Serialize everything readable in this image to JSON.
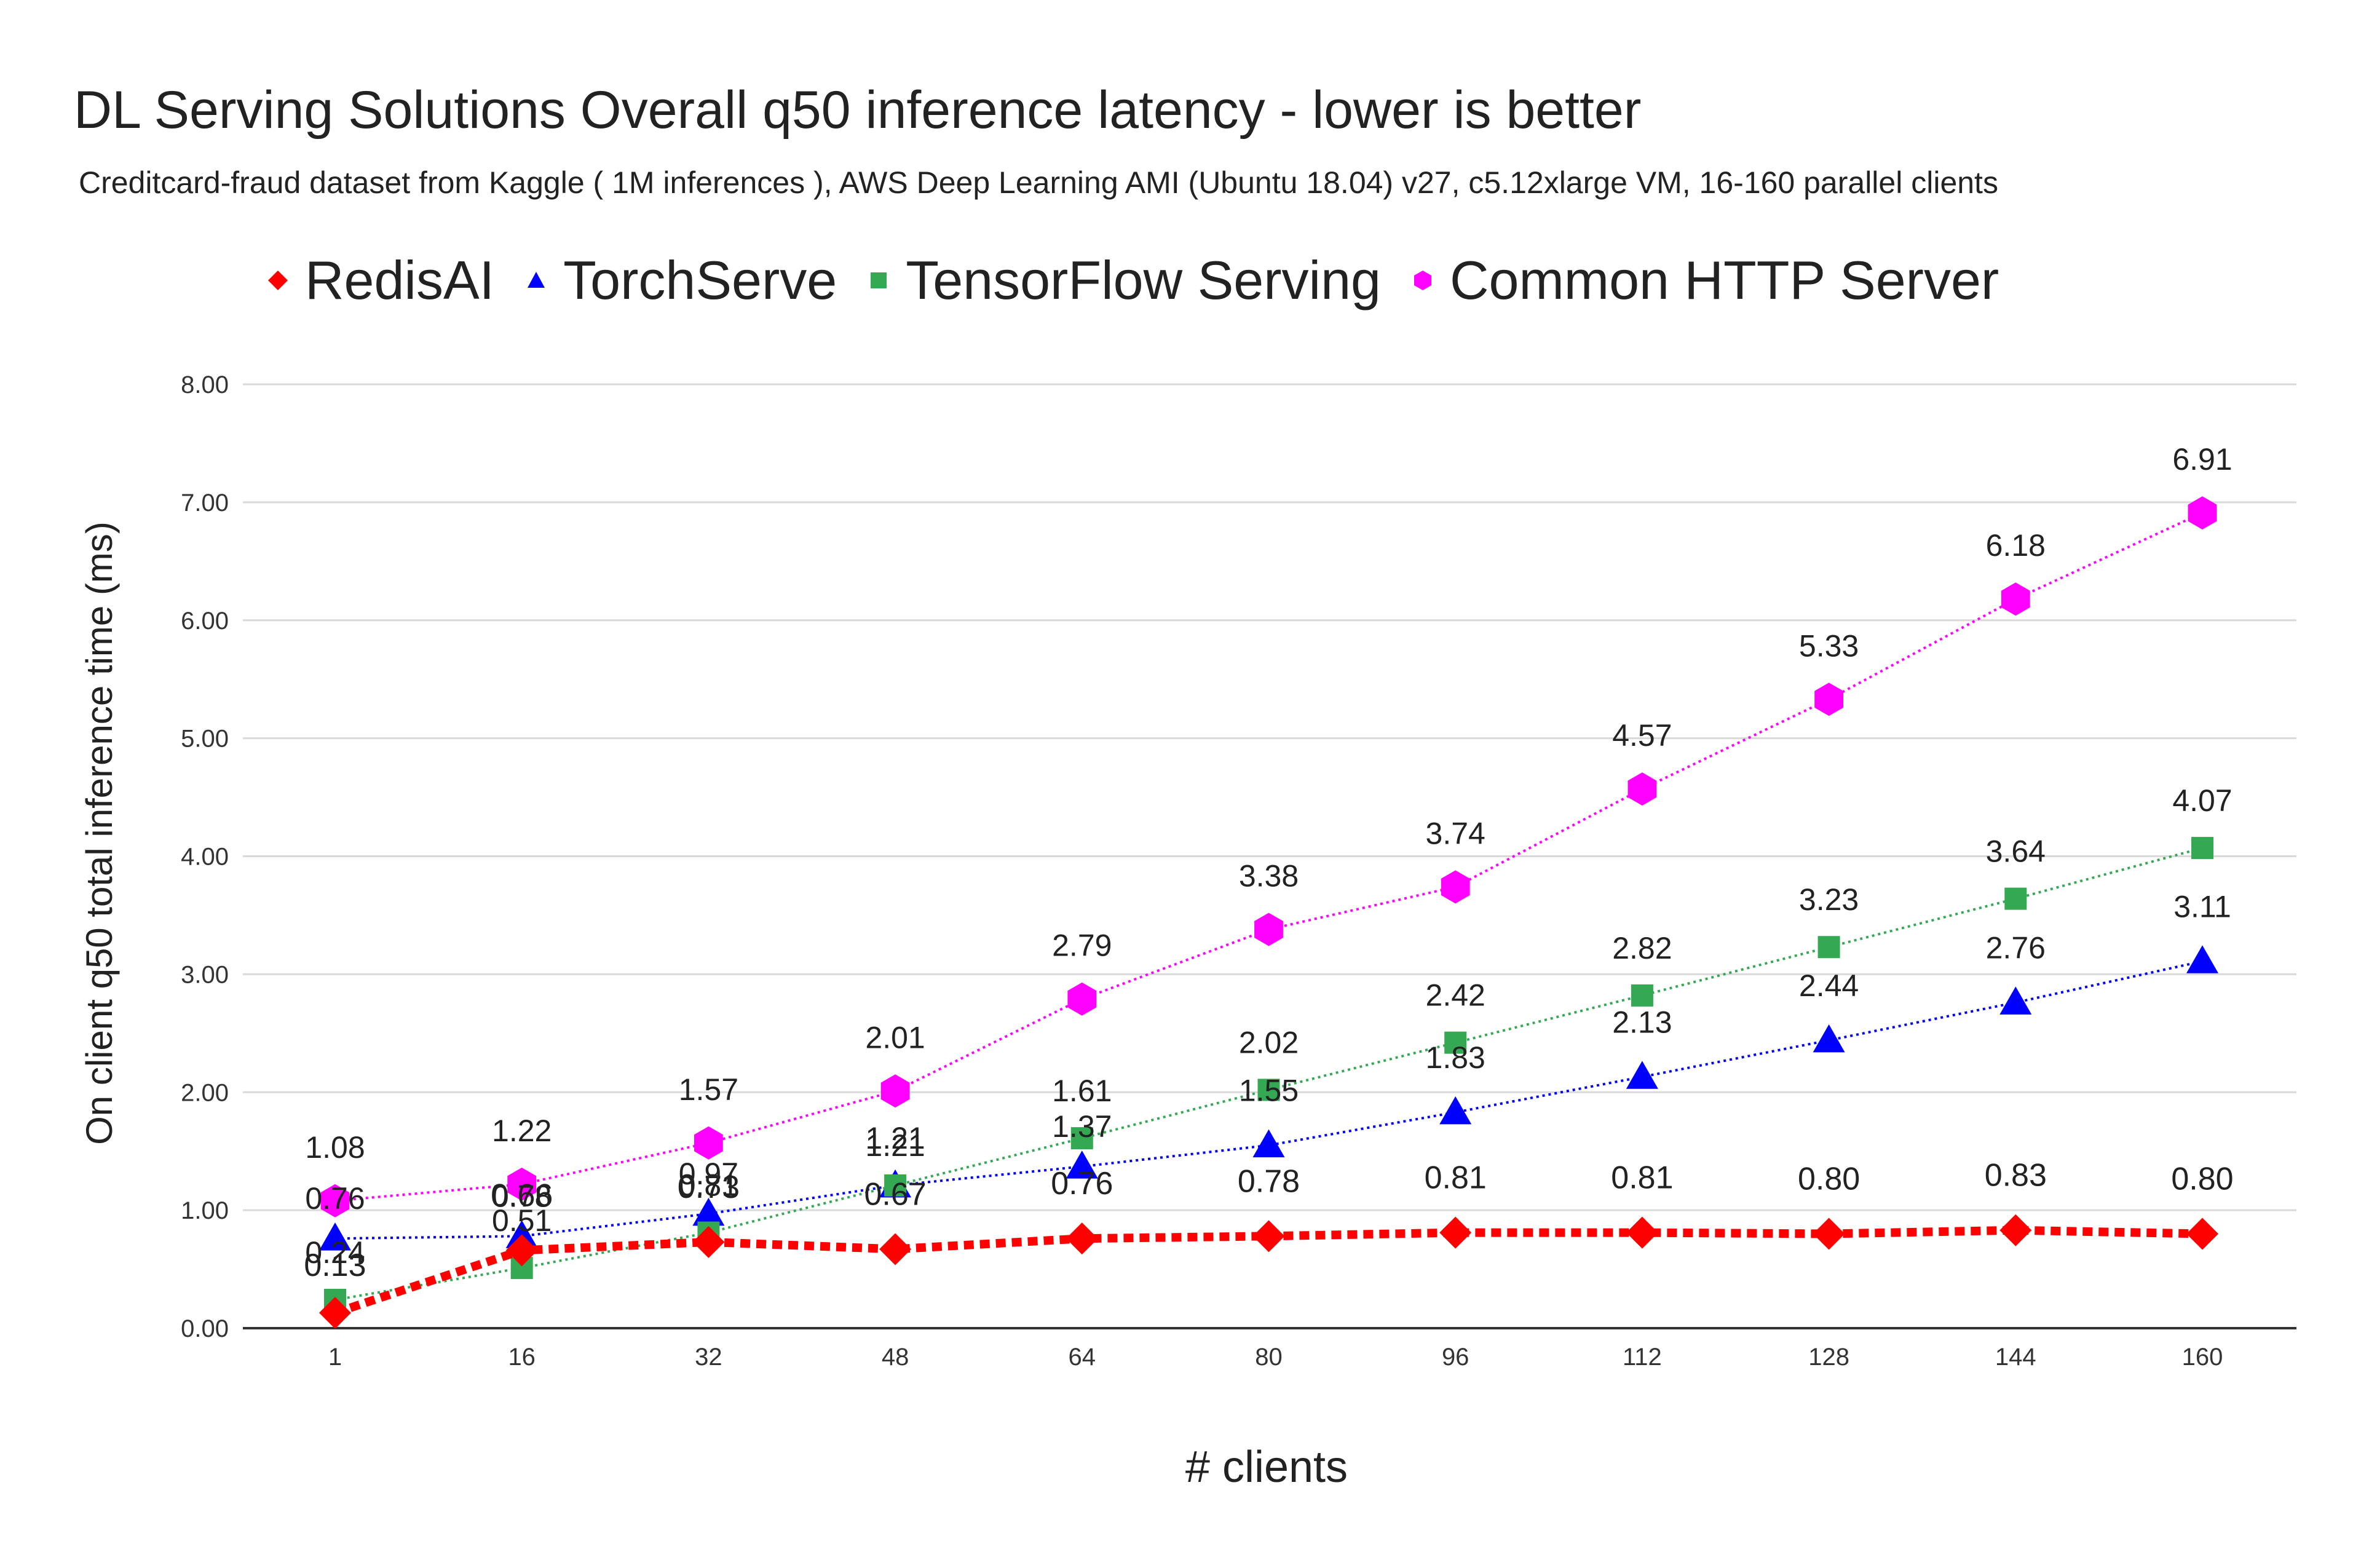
{
  "chart_data": {
    "type": "line",
    "title": "DL Serving Solutions Overall q50 inference latency  - lower is better",
    "subtitle": "Creditcard-fraud dataset from Kaggle ( 1M inferences ), AWS Deep Learning AMI (Ubuntu 18.04) v27, c5.12xlarge VM, 16-160 parallel clients",
    "xlabel": "# clients",
    "ylabel": "On client q50 total inference time (ms)",
    "x": [
      1,
      16,
      32,
      48,
      64,
      80,
      96,
      112,
      128,
      144,
      160
    ],
    "ylim": [
      0,
      8
    ],
    "y_ticks": [
      "0.00",
      "1.00",
      "2.00",
      "3.00",
      "4.00",
      "5.00",
      "6.00",
      "7.00",
      "8.00"
    ],
    "grid": true,
    "legend_position": "top",
    "series": [
      {
        "name": "RedisAI",
        "color": "#ff0000",
        "marker": "diamond",
        "values": [
          0.13,
          0.66,
          0.73,
          0.67,
          0.76,
          0.78,
          0.81,
          0.81,
          0.8,
          0.83,
          0.8
        ],
        "labels": [
          "0.13",
          "0.66",
          "0.73",
          "0.67",
          "0.76",
          "0.78",
          "0.81",
          "0.81",
          "0.80",
          "0.83",
          "0.80"
        ]
      },
      {
        "name": "TorchServe",
        "color": "#0000ff",
        "marker": "triangle",
        "values": [
          0.76,
          0.78,
          0.97,
          1.21,
          1.37,
          1.55,
          1.83,
          2.13,
          2.44,
          2.76,
          3.11
        ],
        "labels": [
          "0.76",
          "0.78",
          "0.97",
          "1.21",
          "1.37",
          "1.55",
          "1.83",
          "2.13",
          "2.44",
          "2.76",
          "3.11"
        ]
      },
      {
        "name": "TensorFlow Serving",
        "color": "#34a853",
        "marker": "square",
        "values": [
          0.24,
          0.51,
          0.81,
          1.21,
          1.61,
          2.02,
          2.42,
          2.82,
          3.23,
          3.64,
          4.07
        ],
        "labels": [
          "0.24",
          "0.51",
          "0.81",
          "1.21",
          "1.61",
          "2.02",
          "2.42",
          "2.82",
          "3.23",
          "3.64",
          "4.07"
        ]
      },
      {
        "name": "Common HTTP Server",
        "color": "#ff00ff",
        "marker": "hexagon",
        "values": [
          1.08,
          1.22,
          1.57,
          2.01,
          2.79,
          3.38,
          3.74,
          4.57,
          5.33,
          6.18,
          6.91
        ],
        "labels": [
          "1.08",
          "1.22",
          "1.57",
          "2.01",
          "2.79",
          "3.38",
          "3.74",
          "4.57",
          "5.33",
          "6.18",
          "6.91"
        ]
      }
    ]
  }
}
